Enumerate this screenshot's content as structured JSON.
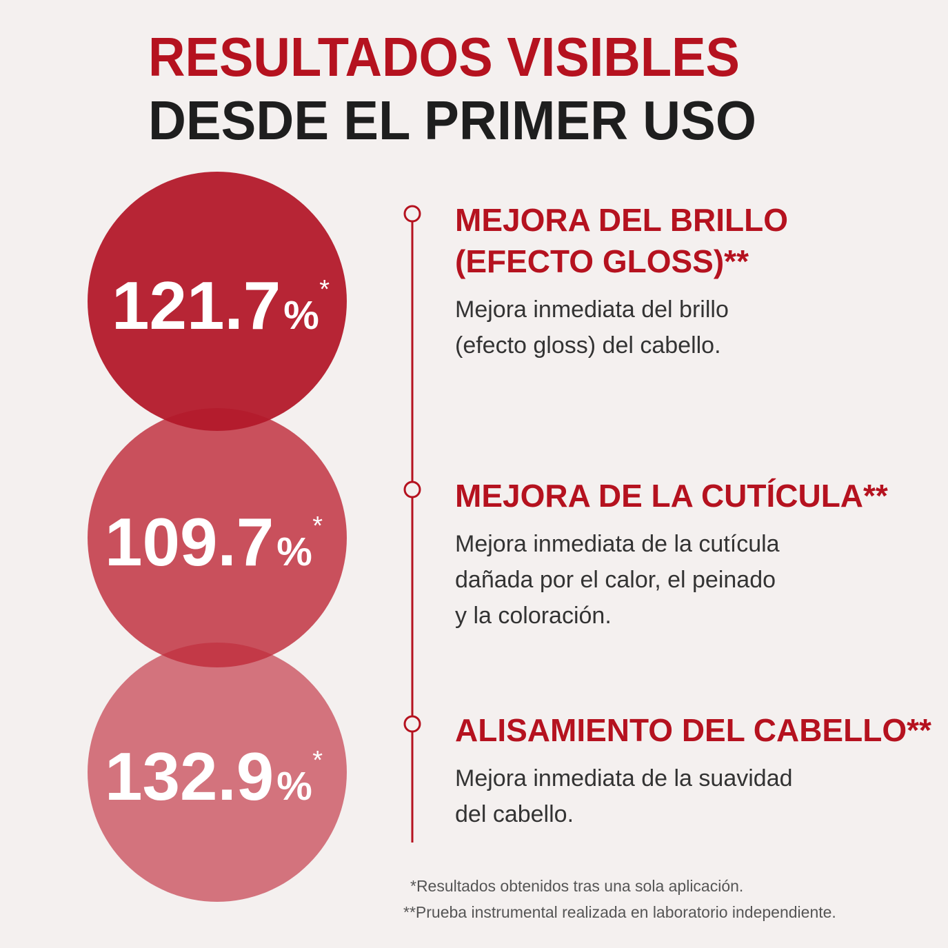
{
  "header": {
    "line1": "RESULTADOS VISIBLES",
    "line2": "DESDE EL PRIMER USO"
  },
  "items": [
    {
      "value": "121.7",
      "unit": "%",
      "mark": "*",
      "heading": [
        "MEJORA DEL BRILLO",
        "(EFECTO GLOSS)**"
      ],
      "description": [
        "Mejora inmediata del brillo",
        "(efecto gloss) del cabello."
      ]
    },
    {
      "value": "109.7",
      "unit": "%",
      "mark": "*",
      "heading": [
        "MEJORA DE LA CUTÍCULA**"
      ],
      "description": [
        "Mejora inmediata de la cutícula",
        "dañada por el calor, el peinado",
        "y la coloración."
      ]
    },
    {
      "value": "132.9",
      "unit": "%",
      "mark": "*",
      "heading": [
        "ALISAMIENTO DEL CABELLO**"
      ],
      "description": [
        "Mejora inmediata de la suavidad",
        "del cabello."
      ]
    }
  ],
  "footnotes": [
    "*Resultados obtenidos tras una sola aplicación.",
    "**Prueba instrumental realizada en laboratorio independiente."
  ]
}
